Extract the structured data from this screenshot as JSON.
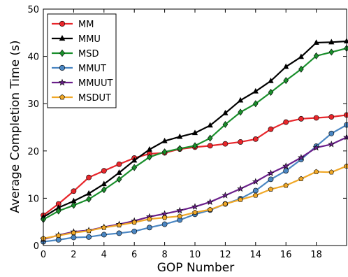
{
  "chart_data": {
    "type": "line",
    "xlabel": "GOP Number",
    "ylabel": "Average Completion Time (s)",
    "xlim": [
      0,
      20
    ],
    "ylim": [
      0,
      50
    ],
    "xticks": [
      0,
      2,
      4,
      6,
      8,
      10,
      12,
      14,
      16,
      18
    ],
    "yticks": [
      0,
      10,
      20,
      30,
      40,
      50
    ],
    "legend_position": "top-left",
    "grid": false,
    "x": [
      0,
      1,
      2,
      3,
      4,
      5,
      6,
      7,
      8,
      9,
      10,
      11,
      12,
      13,
      14,
      15,
      16,
      17,
      18,
      19,
      20
    ],
    "series": [
      {
        "name": "MM",
        "color": "#e8262b",
        "marker": "circle",
        "values": [
          6.4,
          8.8,
          11.5,
          14.4,
          15.8,
          17.2,
          18.5,
          19.4,
          19.6,
          20.4,
          20.8,
          21.1,
          21.5,
          21.9,
          22.5,
          24.6,
          26.1,
          26.8,
          27.0,
          27.2,
          27.6
        ]
      },
      {
        "name": "MMU",
        "color": "#000000",
        "marker": "triangle",
        "values": [
          6.0,
          8.0,
          9.4,
          11.0,
          13.0,
          15.4,
          18.0,
          20.3,
          22.1,
          23.0,
          23.8,
          25.4,
          28.0,
          30.7,
          32.6,
          34.8,
          37.8,
          39.9,
          42.9,
          43.0,
          43.2
        ]
      },
      {
        "name": "MSD",
        "color": "#1a8f2c",
        "marker": "diamond",
        "values": [
          5.5,
          7.3,
          8.5,
          9.8,
          11.8,
          14.0,
          16.5,
          18.7,
          19.8,
          20.5,
          21.1,
          22.7,
          25.6,
          28.2,
          30.0,
          32.4,
          34.9,
          37.3,
          40.1,
          40.9,
          41.7
        ]
      },
      {
        "name": "MMUT",
        "color": "#4a86c2",
        "marker": "circle",
        "values": [
          0.8,
          1.2,
          1.7,
          1.8,
          2.3,
          2.6,
          3.0,
          3.8,
          4.5,
          5.4,
          6.6,
          7.5,
          8.8,
          9.9,
          11.6,
          14.0,
          15.8,
          18.2,
          21.0,
          23.7,
          25.5
        ]
      },
      {
        "name": "MMUUT",
        "color": "#6a1f8a",
        "marker": "star",
        "values": [
          1.3,
          2.2,
          2.9,
          3.2,
          3.9,
          4.5,
          5.2,
          6.1,
          6.7,
          7.4,
          8.2,
          9.2,
          10.6,
          12.0,
          13.5,
          15.3,
          16.8,
          18.6,
          20.7,
          21.4,
          22.9
        ]
      },
      {
        "name": "MSDUT",
        "color": "#f0a828",
        "marker": "pentagon",
        "values": [
          1.5,
          2.1,
          2.7,
          3.1,
          3.8,
          4.3,
          4.9,
          5.6,
          5.9,
          6.2,
          7.0,
          7.6,
          8.8,
          9.7,
          10.6,
          11.9,
          12.7,
          14.1,
          15.6,
          15.5,
          16.8
        ]
      }
    ]
  }
}
